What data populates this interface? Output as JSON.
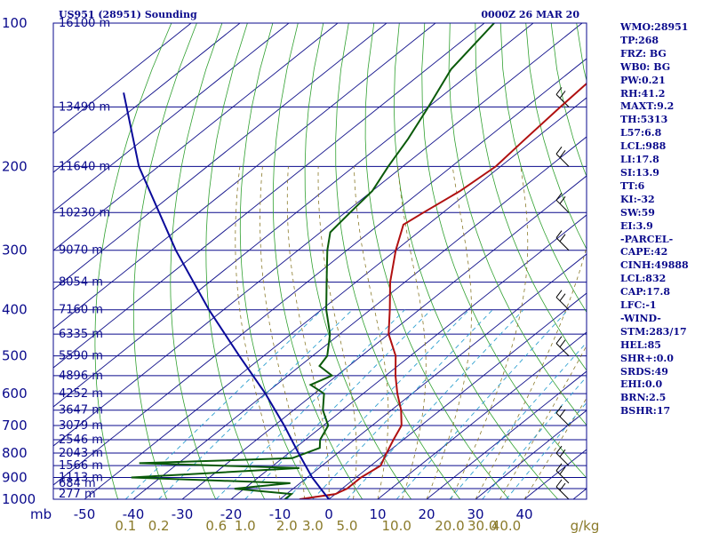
{
  "header": {
    "station": "US951 (28951) Sounding",
    "time": "0000Z 26 MAR 20"
  },
  "indices": [
    "WMO:28951",
    "TP:268",
    "FRZ: BG",
    "WB0: BG",
    "PW:0.21",
    "RH:41.2",
    "MAXT:9.2",
    "TH:5313",
    "L57:6.8",
    "LCL:988",
    "LI:17.8",
    "SI:13.9",
    "TT:6",
    "KI:-32",
    "SW:59",
    "EI:3.9",
    "-PARCEL-",
    "CAPE:42",
    "CINH:49888",
    "LCL:832",
    "CAP:17.8",
    "LFC:-1",
    "-WIND-",
    "STM:283/17",
    "HEL:85",
    "SHR+:0.0",
    "SRDS:49",
    "EHI:0.0",
    "BRN:2.5",
    "BSHR:17"
  ],
  "chart_data": {
    "type": "line",
    "title": "US951 (28951) Sounding",
    "xlabel": "",
    "ylabel": "mb",
    "colors": {
      "frame": "#0a0a8c",
      "temperature": "#b01010",
      "dewpoint": "#0a5a0a",
      "parcel": "#0a0a9a",
      "dry_adiabat": "#30a030",
      "isotherm": "#10108a",
      "mixing_ratio": "#30a0d0",
      "moist_adiabat": "#8a7a2a",
      "wind": "#000000"
    },
    "y_pressure_range": [
      1000,
      100
    ],
    "pressure_ticks": [
      100,
      200,
      300,
      400,
      500,
      600,
      700,
      800,
      900,
      1000
    ],
    "height_labels": [
      {
        "label": "16100 m",
        "p": 100
      },
      {
        "label": "13490 m",
        "p": 150
      },
      {
        "label": "11640 m",
        "p": 200
      },
      {
        "label": "10230 m",
        "p": 250
      },
      {
        "label": "9070 m",
        "p": 300
      },
      {
        "label": "8054 m",
        "p": 350
      },
      {
        "label": "7160 m",
        "p": 400
      },
      {
        "label": "6335 m",
        "p": 450
      },
      {
        "label": "5590 m",
        "p": 500
      },
      {
        "label": "4896 m",
        "p": 550
      },
      {
        "label": "4252 m",
        "p": 600
      },
      {
        "label": "3647 m",
        "p": 650
      },
      {
        "label": "3079 m",
        "p": 700
      },
      {
        "label": "2546 m",
        "p": 750
      },
      {
        "label": "2043 m",
        "p": 800
      },
      {
        "label": "1566 m",
        "p": 850
      },
      {
        "label": "1113 m",
        "p": 900
      },
      {
        "label": "684 m",
        "p": 925
      },
      {
        "label": "277 m",
        "p": 975
      }
    ],
    "x_temperature_ticks": [
      -50,
      -40,
      -30,
      -20,
      -10,
      0,
      10,
      20,
      30,
      40
    ],
    "mixing_ratio_labels": [
      "0.1",
      "0.2",
      "0.6",
      "1.0",
      "2.0",
      "3.0",
      "5.0",
      "10.0",
      "20.0",
      "30.0",
      "40.0"
    ],
    "mixing_ratio_unit": "g/kg",
    "series": [
      {
        "name": "temperature",
        "points": [
          {
            "p": 1000,
            "t": -6
          },
          {
            "p": 975,
            "t": 0
          },
          {
            "p": 950,
            "t": 1
          },
          {
            "p": 925,
            "t": 1
          },
          {
            "p": 900,
            "t": 1
          },
          {
            "p": 850,
            "t": 2
          },
          {
            "p": 800,
            "t": 0
          },
          {
            "p": 750,
            "t": -2
          },
          {
            "p": 700,
            "t": -4
          },
          {
            "p": 650,
            "t": -8
          },
          {
            "p": 600,
            "t": -13
          },
          {
            "p": 550,
            "t": -18
          },
          {
            "p": 500,
            "t": -23
          },
          {
            "p": 450,
            "t": -30
          },
          {
            "p": 400,
            "t": -36
          },
          {
            "p": 350,
            "t": -43
          },
          {
            "p": 300,
            "t": -50
          },
          {
            "p": 265,
            "t": -55
          },
          {
            "p": 250,
            "t": -54
          },
          {
            "p": 225,
            "t": -52
          },
          {
            "p": 200,
            "t": -51
          },
          {
            "p": 175,
            "t": -52
          },
          {
            "p": 150,
            "t": -53
          },
          {
            "p": 125,
            "t": -54
          },
          {
            "p": 100,
            "t": -56
          }
        ]
      },
      {
        "name": "dewpoint",
        "points": [
          {
            "p": 1000,
            "t": -9
          },
          {
            "p": 975,
            "t": -9
          },
          {
            "p": 950,
            "t": -22
          },
          {
            "p": 925,
            "t": -12
          },
          {
            "p": 900,
            "t": -46
          },
          {
            "p": 860,
            "t": -14
          },
          {
            "p": 840,
            "t": -48
          },
          {
            "p": 820,
            "t": -18
          },
          {
            "p": 780,
            "t": -15
          },
          {
            "p": 750,
            "t": -17
          },
          {
            "p": 700,
            "t": -19
          },
          {
            "p": 650,
            "t": -24
          },
          {
            "p": 600,
            "t": -28
          },
          {
            "p": 575,
            "t": -33
          },
          {
            "p": 550,
            "t": -31
          },
          {
            "p": 525,
            "t": -36
          },
          {
            "p": 500,
            "t": -37
          },
          {
            "p": 450,
            "t": -42
          },
          {
            "p": 400,
            "t": -49
          },
          {
            "p": 350,
            "t": -56
          },
          {
            "p": 300,
            "t": -64
          },
          {
            "p": 275,
            "t": -68
          },
          {
            "p": 250,
            "t": -69
          },
          {
            "p": 225,
            "t": -70
          },
          {
            "p": 200,
            "t": -73
          },
          {
            "p": 175,
            "t": -76
          },
          {
            "p": 150,
            "t": -80
          },
          {
            "p": 125,
            "t": -85
          },
          {
            "p": 100,
            "t": -88
          }
        ]
      },
      {
        "name": "parcel",
        "points": [
          {
            "p": 1000,
            "t": 0
          },
          {
            "p": 900,
            "t": -9
          },
          {
            "p": 800,
            "t": -18
          },
          {
            "p": 700,
            "t": -28
          },
          {
            "p": 600,
            "t": -40
          },
          {
            "p": 500,
            "t": -55
          },
          {
            "p": 400,
            "t": -73
          },
          {
            "p": 300,
            "t": -95
          },
          {
            "p": 200,
            "t": -124
          },
          {
            "p": 140,
            "t": -146
          }
        ]
      }
    ],
    "legend": "none",
    "grid": true
  }
}
